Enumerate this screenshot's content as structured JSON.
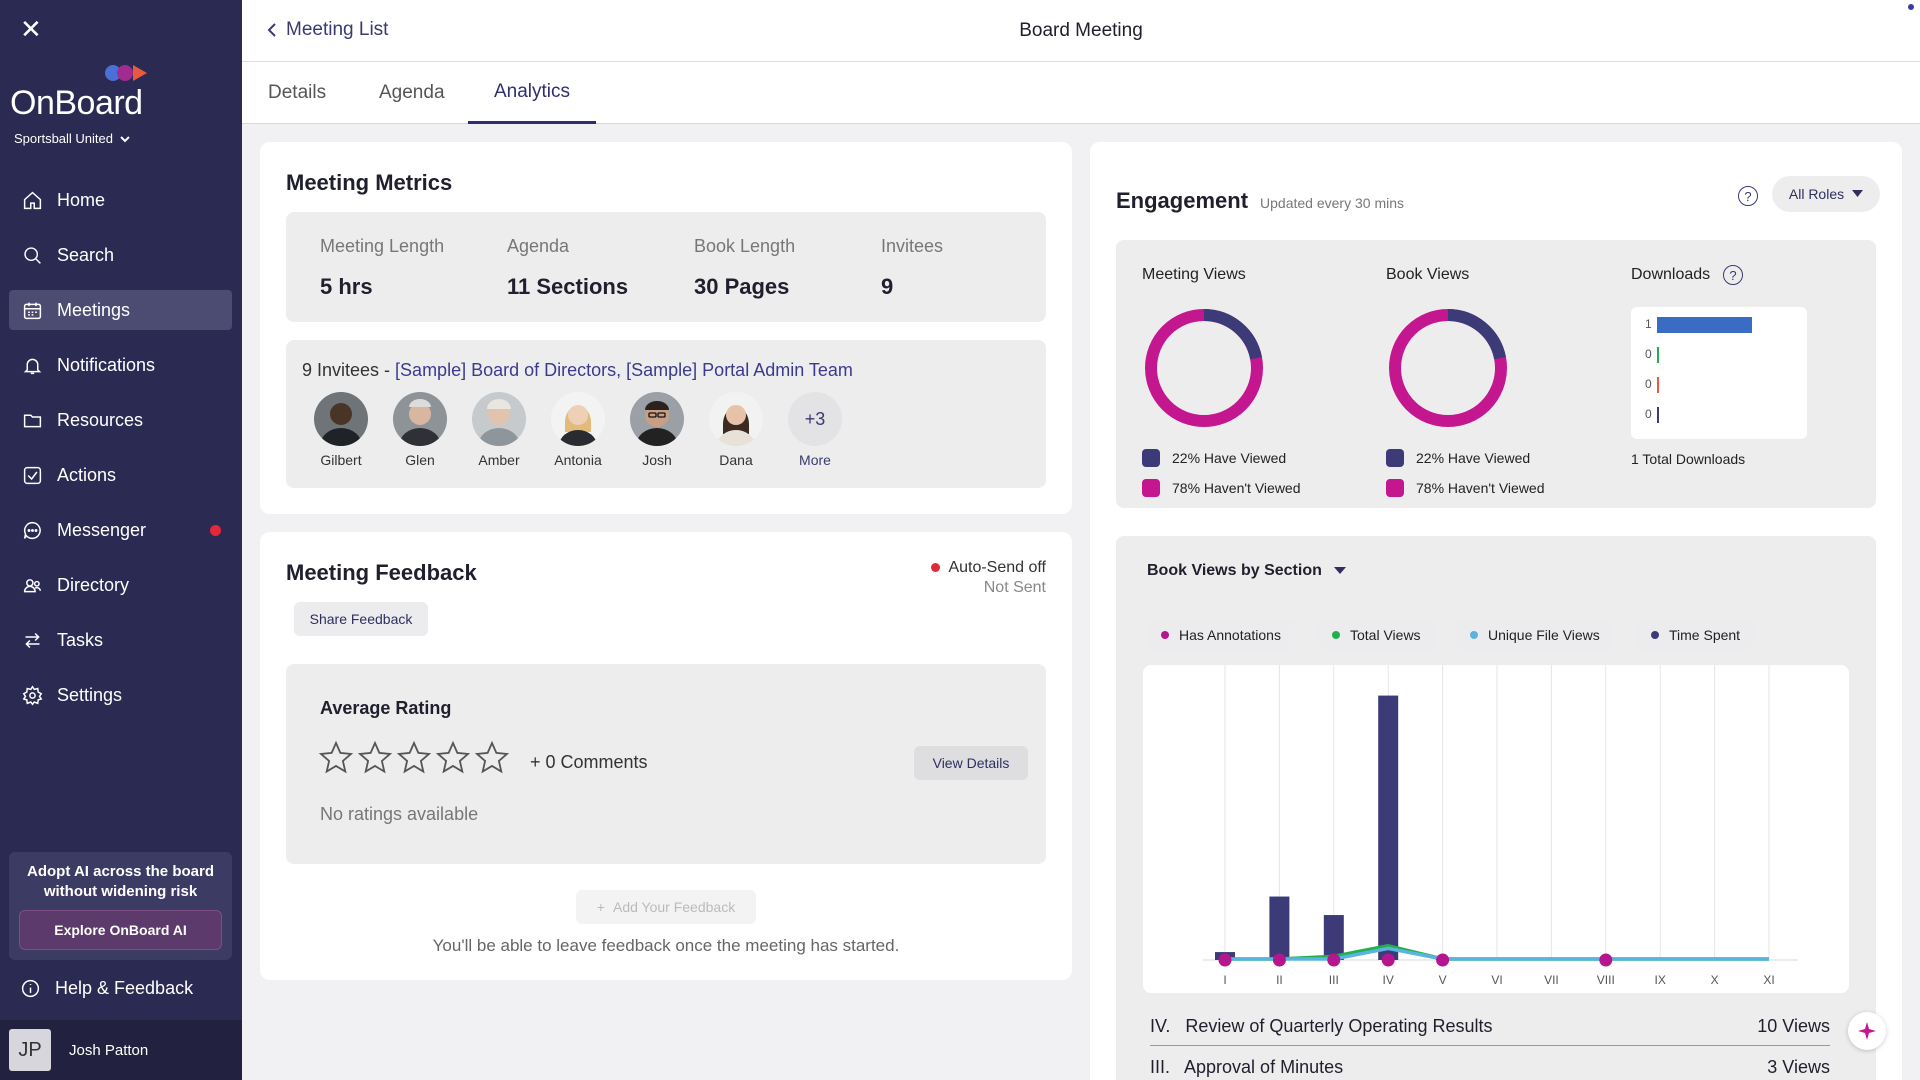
{
  "sidebar": {
    "brand": "OnBoard",
    "org": "Sportsball United",
    "items": [
      {
        "label": "Home",
        "icon": "home-icon"
      },
      {
        "label": "Search",
        "icon": "search-icon"
      },
      {
        "label": "Meetings",
        "icon": "calendar-icon",
        "active": true
      },
      {
        "label": "Notifications",
        "icon": "bell-icon"
      },
      {
        "label": "Resources",
        "icon": "folder-icon"
      },
      {
        "label": "Actions",
        "icon": "checkbox-icon"
      },
      {
        "label": "Messenger",
        "icon": "chat-icon",
        "badge": true
      },
      {
        "label": "Directory",
        "icon": "people-icon"
      },
      {
        "label": "Tasks",
        "icon": "arrows-icon"
      },
      {
        "label": "Settings",
        "icon": "gear-icon"
      }
    ],
    "promo_text": "Adopt AI across the board without widening risk",
    "promo_button": "Explore OnBoard AI",
    "help_label": "Help & Feedback",
    "user_initials": "JP",
    "user_name": "Josh Patton"
  },
  "header": {
    "back_label": "Meeting List",
    "title": "Board Meeting"
  },
  "tabs": [
    {
      "label": "Details"
    },
    {
      "label": "Agenda"
    },
    {
      "label": "Analytics",
      "active": true
    }
  ],
  "metrics": {
    "title": "Meeting Metrics",
    "items": [
      {
        "label": "Meeting Length",
        "value": "5 hrs"
      },
      {
        "label": "Agenda",
        "value": "11 Sections"
      },
      {
        "label": "Book Length",
        "value": "30 Pages"
      },
      {
        "label": "Invitees",
        "value": "9"
      }
    ],
    "invitees_prefix": "9 Invitees - ",
    "invitees_groups": "[Sample] Board of Directors, [Sample] Portal Admin Team",
    "people": [
      "Gilbert",
      "Glen",
      "Amber",
      "Antonia",
      "Josh",
      "Dana"
    ],
    "more_count": "+3",
    "more_label": "More"
  },
  "feedback": {
    "title": "Meeting Feedback",
    "share_button": "Share Feedback",
    "autosend": "Auto-Send off",
    "sent_status": "Not Sent",
    "avg_title": "Average Rating",
    "comments": "+ 0 Comments",
    "view_details": "View Details",
    "no_ratings": "No ratings available",
    "add_button": "Add Your Feedback",
    "note": "You'll be able to leave feedback once the meeting has started."
  },
  "engagement": {
    "title": "Engagement",
    "subtitle": "Updated every 30 mins",
    "roles": "All Roles",
    "meeting_views": {
      "title": "Meeting Views",
      "viewed": "22% Have Viewed",
      "not_viewed": "78% Haven't Viewed",
      "viewed_pct": 22
    },
    "book_views": {
      "title": "Book Views",
      "viewed": "22% Have Viewed",
      "not_viewed": "78% Haven't Viewed",
      "viewed_pct": 22
    },
    "downloads": {
      "title": "Downloads",
      "values": [
        1,
        0,
        0,
        0
      ],
      "labels": [
        "1",
        "0",
        "0",
        "0"
      ],
      "total": "1 Total Downloads"
    },
    "colors": {
      "viewed": "#3d3a78",
      "not_viewed": "#c4168f"
    }
  },
  "section_chart": {
    "title": "Book Views by Section",
    "legend": [
      {
        "name": "Has Annotations",
        "color": "#b5168d"
      },
      {
        "name": "Total Views",
        "color": "#22b04b"
      },
      {
        "name": "Unique File Views",
        "color": "#5ab4e0"
      },
      {
        "name": "Time Spent",
        "color": "#3d3a78"
      }
    ],
    "rows": [
      {
        "label": "IV.   Review of Quarterly Operating Results",
        "value": "10 Views"
      },
      {
        "label": "III.   Approval of Minutes",
        "value": "3 Views"
      }
    ]
  },
  "chart_data": {
    "type": "bar",
    "categories": [
      "I",
      "II",
      "III",
      "IV",
      "V",
      "VI",
      "VII",
      "VIII",
      "IX",
      "X",
      "XI"
    ],
    "series": [
      {
        "name": "Time Spent",
        "type": "bar",
        "values": [
          0.3,
          2.4,
          1.7,
          10,
          0,
          0,
          0,
          0,
          0,
          0,
          0
        ]
      },
      {
        "name": "Total Views",
        "type": "line",
        "values": [
          0,
          0,
          0.1,
          0.5,
          0,
          0,
          0,
          0,
          0,
          0,
          0
        ]
      },
      {
        "name": "Unique File Views",
        "type": "line",
        "values": [
          0,
          0,
          0,
          0.4,
          0,
          0,
          0,
          0,
          0,
          0,
          0
        ]
      },
      {
        "name": "Has Annotations",
        "type": "marker",
        "values": [
          1,
          1,
          1,
          1,
          1,
          0,
          0,
          1,
          0,
          0,
          0
        ]
      }
    ],
    "ylim": [
      0,
      10.4
    ]
  }
}
